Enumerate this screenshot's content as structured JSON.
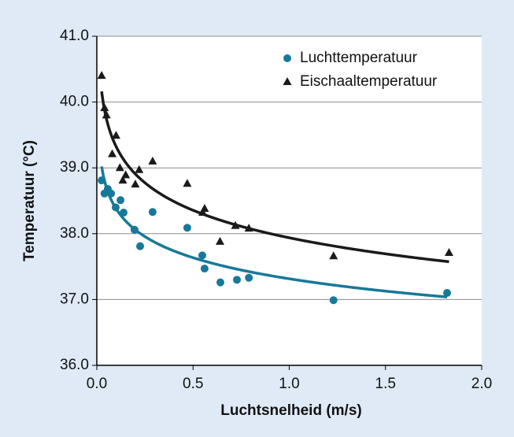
{
  "chart_data": {
    "type": "scatter",
    "xlabel": "Luchtsnelheid (m/s)",
    "ylabel": "Temperatuur (°C)",
    "xlim": [
      0,
      2
    ],
    "ylim": [
      36,
      41
    ],
    "xticks": [
      {
        "value": 0,
        "label": "0.0"
      },
      0.5,
      {
        "value": 1,
        "label": "1.0"
      },
      1.5,
      {
        "value": 2,
        "label": "2.0"
      }
    ],
    "yticks": [
      {
        "value": 36,
        "label": "36.0"
      },
      {
        "value": 37,
        "label": "37.0"
      },
      {
        "value": 38,
        "label": "38.0"
      },
      {
        "value": 39,
        "label": "39.0"
      },
      {
        "value": 40,
        "label": "40.0"
      },
      {
        "value": 41,
        "label": "41.0"
      }
    ],
    "grid": true,
    "legend": "upper right",
    "trendline": "logarithmic",
    "series": [
      {
        "name": "Luchttemperatuur",
        "color": "#17799a",
        "marker": "circle",
        "x": [
          0.025,
          0.04,
          0.057,
          0.074,
          0.098,
          0.123,
          0.139,
          0.196,
          0.225,
          0.29,
          0.47,
          0.548,
          0.56,
          0.642,
          0.728,
          0.79,
          1.23,
          1.82
        ],
        "values": [
          38.81,
          38.61,
          38.68,
          38.61,
          38.4,
          38.51,
          38.32,
          38.06,
          37.81,
          38.33,
          38.09,
          37.67,
          37.47,
          37.26,
          37.3,
          37.33,
          36.99,
          37.1
        ]
      },
      {
        "name": "Eischaaltemperatuur",
        "color": "#1a1a1a",
        "marker": "triangle",
        "x": [
          0.025,
          0.04,
          0.05,
          0.08,
          0.1,
          0.12,
          0.135,
          0.15,
          0.2,
          0.22,
          0.29,
          0.47,
          0.55,
          0.56,
          0.64,
          0.72,
          0.79,
          1.23,
          1.83
        ],
        "values": [
          40.4,
          39.91,
          39.8,
          39.21,
          39.49,
          39.0,
          38.81,
          38.89,
          38.75,
          38.97,
          39.1,
          38.76,
          38.32,
          38.38,
          37.88,
          38.12,
          38.08,
          37.66,
          37.71
        ]
      }
    ]
  }
}
